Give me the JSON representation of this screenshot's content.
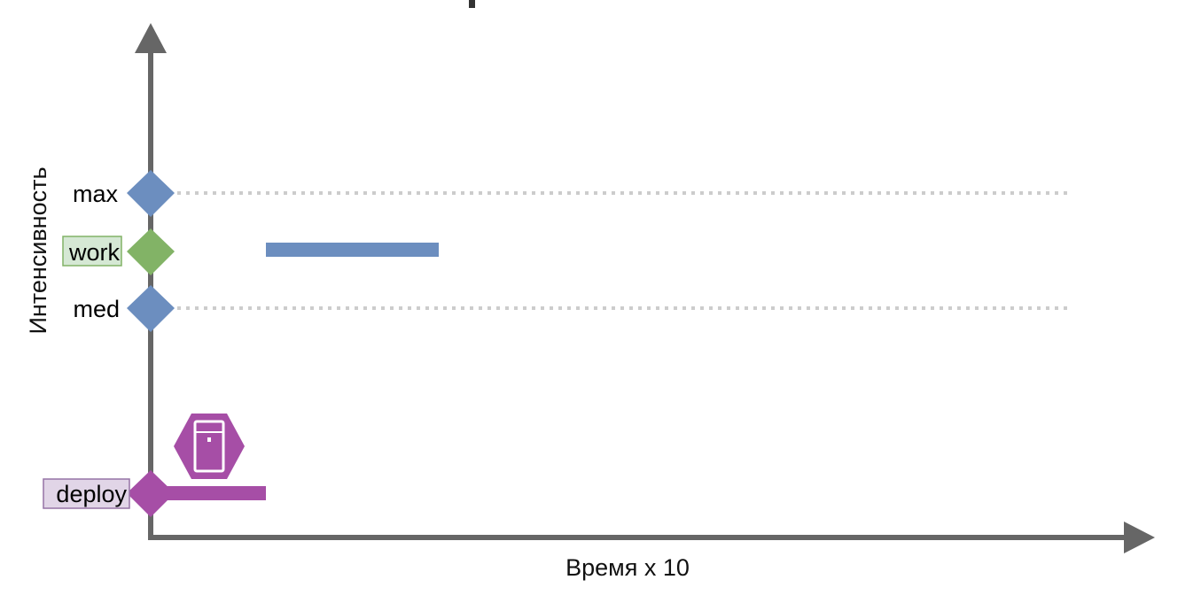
{
  "axes": {
    "x_title": "Время x 10",
    "y_title": "Интенсивность"
  },
  "levels": [
    {
      "id": "max",
      "label": "max",
      "marker_color": "#6c8ebf",
      "line": "dotted",
      "boxed": false
    },
    {
      "id": "work",
      "label": "work",
      "marker_color": "#82b366",
      "line": "none",
      "boxed": true,
      "box_fill": "#d5e8d4",
      "box_stroke": "#82b366"
    },
    {
      "id": "med",
      "label": "med",
      "marker_color": "#6c8ebf",
      "line": "dotted",
      "boxed": false
    },
    {
      "id": "deploy",
      "label": "deploy",
      "marker_color": "#a64ea6",
      "line": "none",
      "boxed": true,
      "box_fill": "#e1d5e7",
      "box_stroke": "#9673a6"
    }
  ],
  "bars": [
    {
      "id": "work-bar",
      "level": "work",
      "color": "#6c8ebf"
    },
    {
      "id": "deploy-bar",
      "level": "deploy",
      "color": "#a64ea6"
    }
  ],
  "icons": [
    {
      "name": "server-hexagon-icon",
      "color": "#a64ea6"
    }
  ],
  "colors": {
    "axis": "#666666",
    "gridline": "#cccccc"
  }
}
